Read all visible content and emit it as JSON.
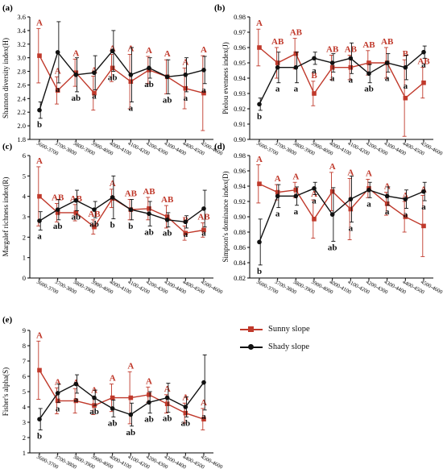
{
  "x_categories": [
    "3600-3700",
    "3700-3800",
    "3800-3900",
    "3900-4000",
    "4000-4100",
    "4100-4200",
    "4200-4300",
    "4300-4400",
    "4400-4500",
    "4500-4600"
  ],
  "legend": [
    {
      "name": "Sunny slope",
      "color": "#c0392b",
      "marker": "square"
    },
    {
      "name": "Shady slope",
      "color": "#111111",
      "marker": "circle"
    }
  ],
  "chart_data": [
    {
      "type": "line",
      "panel": "(a)",
      "ylabel": "Shannon diversity index(H)",
      "ylim": [
        1.8,
        3.6
      ],
      "yticks": [
        "1.8",
        "2.0",
        "2.2",
        "2.4",
        "2.6",
        "2.8",
        "3.0",
        "3.2",
        "3.4",
        "3.6"
      ],
      "series": [
        {
          "name": "Sunny slope",
          "values": [
            3.03,
            2.52,
            2.78,
            2.48,
            2.85,
            2.65,
            2.82,
            2.72,
            2.55,
            2.48
          ],
          "errors": [
            0.4,
            0.2,
            0.2,
            0.25,
            0.2,
            0.4,
            0.2,
            0.25,
            0.3,
            0.55
          ],
          "labels": [
            "A",
            "A",
            "A",
            "A",
            "A",
            "A",
            "A",
            "A",
            "A",
            "A"
          ]
        },
        {
          "name": "Shady slope",
          "values": [
            2.23,
            3.08,
            2.75,
            2.78,
            3.1,
            2.75,
            2.85,
            2.72,
            2.75,
            2.82
          ],
          "errors": [
            0.12,
            0.45,
            0.25,
            0.25,
            0.3,
            0.4,
            0.15,
            0.25,
            0.25,
            0.2
          ],
          "labels": [
            "b",
            "a",
            "ab",
            "a",
            "ab",
            "a",
            "ab",
            "ab",
            "a",
            "a"
          ]
        }
      ]
    },
    {
      "type": "line",
      "panel": "(b)",
      "ylabel": "Pielou evenness index(J)",
      "ylim": [
        0.9,
        0.98
      ],
      "yticks": [
        "0.90",
        "0.91",
        "0.92",
        "0.93",
        "0.94",
        "0.95",
        "0.96",
        "0.97",
        "0.98"
      ],
      "series": [
        {
          "name": "Sunny slope",
          "values": [
            0.96,
            0.95,
            0.956,
            0.93,
            0.947,
            0.947,
            0.95,
            0.95,
            0.927,
            0.937
          ],
          "errors": [
            0.012,
            0.01,
            0.01,
            0.008,
            0.008,
            0.008,
            0.008,
            0.01,
            0.025,
            0.01
          ],
          "labels": [
            "A",
            "AB",
            "AB",
            "B",
            "AB",
            "AB",
            "AB",
            "AB",
            "B",
            "AB"
          ]
        },
        {
          "name": "Shady slope",
          "values": [
            0.923,
            0.947,
            0.947,
            0.953,
            0.95,
            0.953,
            0.943,
            0.95,
            0.947,
            0.957
          ],
          "errors": [
            0.004,
            0.01,
            0.01,
            0.004,
            0.006,
            0.01,
            0.006,
            0.006,
            0.008,
            0.004
          ],
          "labels": [
            "b",
            "a",
            "a",
            "a",
            "a",
            "a",
            "ab",
            "a",
            "a",
            "a"
          ]
        }
      ]
    },
    {
      "type": "line",
      "panel": "(c)",
      "ylabel": "Margalef richness index(R)",
      "ylim": [
        0,
        6
      ],
      "yticks": [
        "0",
        "1",
        "2",
        "3",
        "4",
        "5",
        "6"
      ],
      "series": [
        {
          "name": "Sunny slope",
          "values": [
            4.0,
            3.2,
            3.2,
            2.5,
            3.9,
            3.35,
            3.4,
            3.0,
            2.2,
            2.35
          ],
          "errors": [
            1.45,
            0.45,
            0.4,
            0.35,
            0.45,
            0.5,
            0.55,
            0.55,
            0.35,
            0.35
          ],
          "labels": [
            "A",
            "AB",
            "AB",
            "AB",
            "A",
            "AB",
            "AB",
            "AB",
            "B",
            "AB"
          ]
        },
        {
          "name": "Shady slope",
          "values": [
            2.8,
            3.35,
            3.8,
            3.35,
            3.95,
            3.35,
            3.15,
            2.85,
            2.75,
            3.4
          ],
          "errors": [
            0.45,
            0.5,
            0.5,
            0.4,
            1.05,
            0.5,
            0.6,
            0.35,
            0.3,
            0.9
          ],
          "labels": [
            "a",
            "ab",
            "ab",
            "ab",
            "b",
            "b",
            "ab",
            "ab",
            "a",
            "a"
          ]
        }
      ]
    },
    {
      "type": "line",
      "panel": "(d)",
      "ylabel": "Simpson's dominance index(D)",
      "ylim": [
        0.82,
        0.98
      ],
      "yticks": [
        "0.82",
        "0.84",
        "0.86",
        "0.88",
        "0.90",
        "0.92",
        "0.94",
        "0.96",
        "0.98"
      ],
      "series": [
        {
          "name": "Sunny slope",
          "values": [
            0.943,
            0.932,
            0.935,
            0.897,
            0.933,
            0.91,
            0.937,
            0.917,
            0.9,
            0.888
          ],
          "errors": [
            0.025,
            0.01,
            0.01,
            0.025,
            0.025,
            0.04,
            0.012,
            0.015,
            0.02,
            0.04
          ],
          "labels": [
            "A",
            "A",
            "A",
            "A",
            "A",
            "A",
            "A",
            "A",
            "A",
            "A"
          ]
        },
        {
          "name": "Shady slope",
          "values": [
            0.867,
            0.927,
            0.927,
            0.937,
            0.903,
            0.923,
            0.935,
            0.927,
            0.923,
            0.933
          ],
          "errors": [
            0.03,
            0.015,
            0.012,
            0.008,
            0.035,
            0.03,
            0.01,
            0.012,
            0.012,
            0.012
          ],
          "labels": [
            "b",
            "a",
            "a",
            "a",
            "ab",
            "a",
            "a",
            "a",
            "a",
            "a"
          ]
        }
      ]
    },
    {
      "type": "line",
      "panel": "(e)",
      "ylabel": "Fisher's alpha(S)",
      "ylim": [
        1,
        9
      ],
      "yticks": [
        "1",
        "2",
        "3",
        "4",
        "5",
        "6",
        "7",
        "8",
        "9"
      ],
      "series": [
        {
          "name": "Sunny slope",
          "values": [
            6.4,
            4.4,
            4.4,
            4.1,
            4.6,
            4.6,
            4.8,
            4.2,
            3.6,
            3.2
          ],
          "errors": [
            1.9,
            0.85,
            0.8,
            0.6,
            0.9,
            1.7,
            0.5,
            0.6,
            0.65,
            0.7
          ],
          "labels": [
            "A",
            "A",
            "A",
            "A",
            "A",
            "A",
            "A",
            "A",
            "A",
            "A"
          ]
        },
        {
          "name": "Shady slope",
          "values": [
            3.2,
            4.9,
            5.5,
            4.6,
            3.9,
            3.5,
            4.3,
            4.6,
            4.0,
            5.6
          ],
          "errors": [
            0.7,
            0.6,
            0.6,
            0.5,
            0.55,
            0.75,
            0.7,
            0.95,
            0.65,
            1.8
          ],
          "labels": [
            "b",
            "a",
            "a",
            "ab",
            "ab",
            "ab",
            "ab",
            "ab",
            "ab",
            "a"
          ]
        }
      ]
    }
  ]
}
